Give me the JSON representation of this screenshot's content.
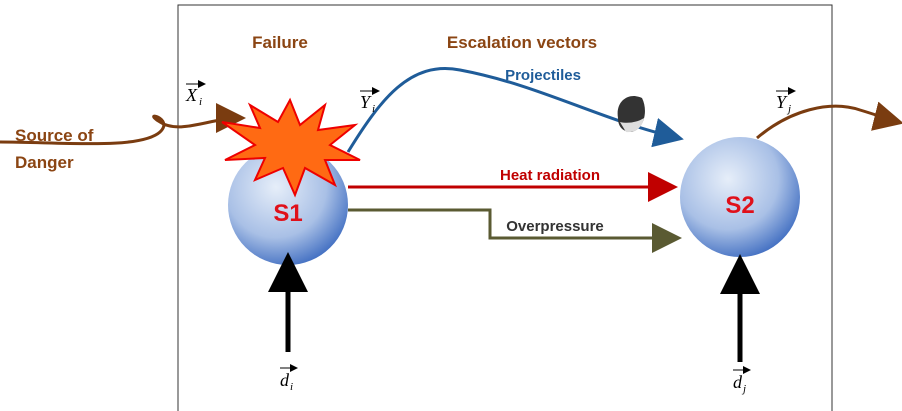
{
  "headers": {
    "failure": "Failure",
    "escalation": "Escalation vectors"
  },
  "source": {
    "line1": "Source of",
    "line2": "Danger"
  },
  "nodes": [
    {
      "label": "S1"
    },
    {
      "label": "S2"
    }
  ],
  "escalation_vectors": [
    {
      "label": "Projectiles"
    },
    {
      "label": "Heat radiation"
    },
    {
      "label": "Overpressure"
    }
  ],
  "vectors": {
    "x_i": {
      "base": "X",
      "sub": "i"
    },
    "y_i": {
      "base": "Y",
      "sub": "i"
    },
    "y_j": {
      "base": "Y",
      "sub": "j"
    },
    "d_i": {
      "base": "d",
      "sub": "i"
    },
    "d_j": {
      "base": "d",
      "sub": "j"
    }
  }
}
